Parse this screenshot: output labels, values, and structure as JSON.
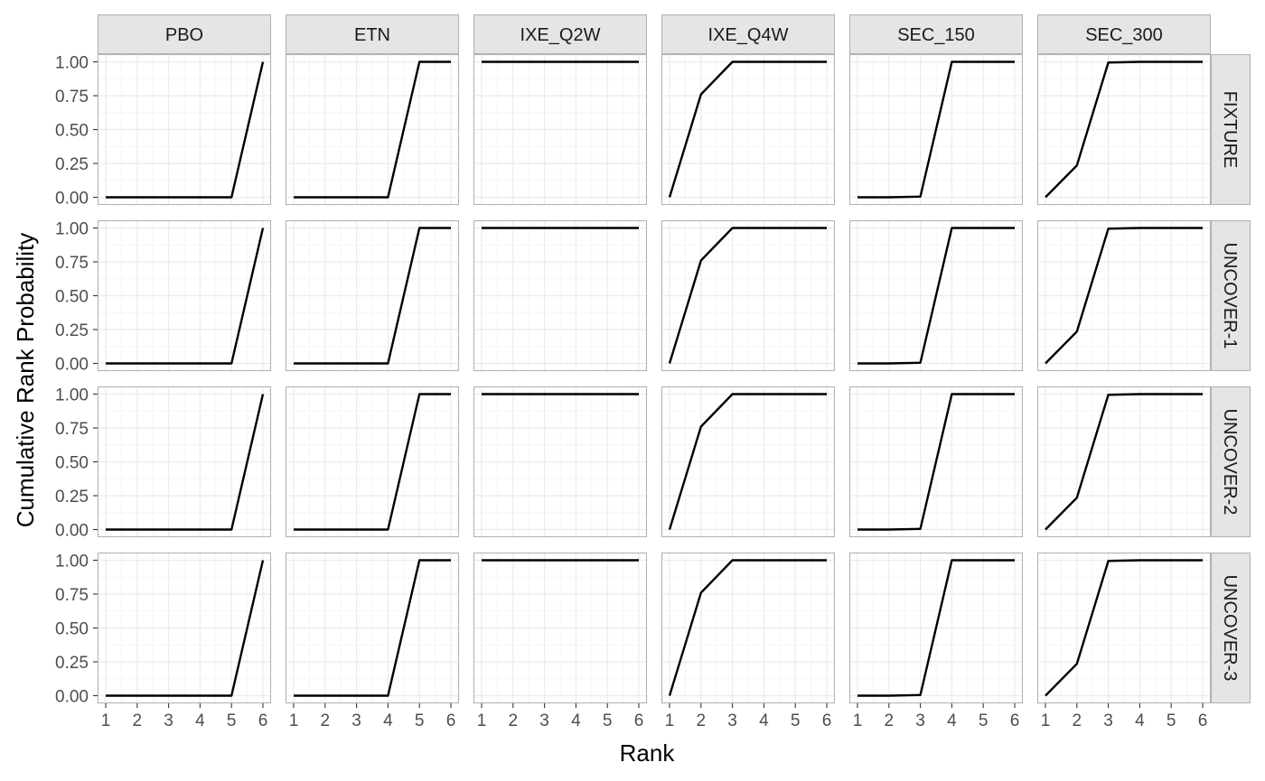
{
  "chart_data": {
    "type": "line",
    "title": "",
    "xlabel": "Rank",
    "ylabel": "Cumulative Rank Probability",
    "x": [
      1,
      2,
      3,
      4,
      5,
      6
    ],
    "x_ticks": [
      "1",
      "2",
      "3",
      "4",
      "5",
      "6"
    ],
    "xlim": [
      1,
      6
    ],
    "y_ticks": [
      "0.00",
      "0.25",
      "0.50",
      "0.75",
      "1.00"
    ],
    "ylim": [
      0,
      1
    ],
    "grid": true,
    "legend": "none",
    "line_color": "#000000",
    "treatments": [
      "PBO",
      "ETN",
      "IXE_Q2W",
      "IXE_Q4W",
      "SEC_150",
      "SEC_300"
    ],
    "studies": [
      "FIXTURE",
      "UNCOVER-1",
      "UNCOVER-2",
      "UNCOVER-3"
    ],
    "series": [
      {
        "name": "PBO",
        "values": [
          0,
          0,
          0,
          0,
          0,
          1
        ]
      },
      {
        "name": "ETN",
        "values": [
          0,
          0,
          0,
          0,
          1,
          1
        ]
      },
      {
        "name": "IXE_Q2W",
        "values": [
          1,
          1,
          1,
          1,
          1,
          1
        ]
      },
      {
        "name": "IXE_Q4W",
        "values": [
          0,
          0.76,
          1,
          1,
          1,
          1
        ]
      },
      {
        "name": "SEC_150",
        "values": [
          0,
          0,
          0.005,
          1,
          1,
          1
        ]
      },
      {
        "name": "SEC_300",
        "values": [
          0,
          0.235,
          0.995,
          1,
          1,
          1
        ]
      }
    ]
  }
}
